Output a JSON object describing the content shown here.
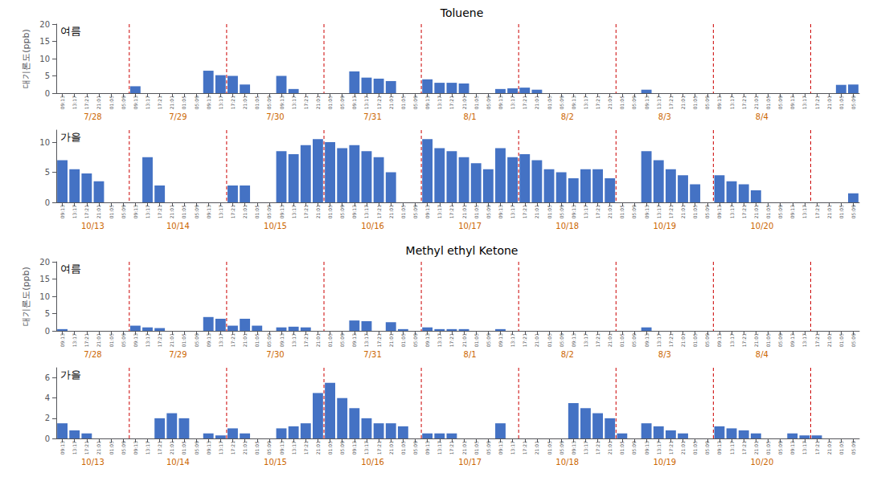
{
  "chart_data": [
    {
      "type": "bar",
      "title": "Toluene",
      "ylabel": "대기론도(ppb)",
      "annotations": [
        "여름"
      ],
      "categories": [
        "09:13",
        "13:17",
        "17:21",
        "21:01",
        "01:05",
        "05:09",
        "09:13",
        "13:17",
        "17:21",
        "21:01",
        "01:05",
        "05:09",
        "09:13",
        "13:17",
        "17:21",
        "21:01",
        "01:05",
        "05:09",
        "09:13",
        "13:17",
        "17:21",
        "21:01",
        "01:05",
        "05:09",
        "09:13",
        "13:17",
        "17:21",
        "21:01",
        "01:05",
        "05:09",
        "09:13",
        "13:17",
        "17:21",
        "21:01",
        "01:05",
        "05:09",
        "09:13",
        "13:17",
        "17:21",
        "21:01",
        "01:05",
        "05:09",
        "09:13",
        "13:17",
        "17:21",
        "21:01",
        "01:05",
        "05:09",
        "09:13",
        "13:17",
        "17:21",
        "21:01",
        "01:05",
        "05:09",
        "09:13",
        "13:17",
        "17:21",
        "21:01",
        "01:05",
        "05:09",
        "09:13",
        "13:17",
        "17:21",
        "21:01",
        "01:05",
        "05:09"
      ],
      "values": [
        0.0,
        0.0,
        0.0,
        0.0,
        0.0,
        0.0,
        2.0,
        0.0,
        0.0,
        0.0,
        0.0,
        0.0,
        6.5,
        5.2,
        5.0,
        2.5,
        0.0,
        0.0,
        5.0,
        1.2,
        0.0,
        0.0,
        0.0,
        0.0,
        6.3,
        4.5,
        4.2,
        3.5,
        0.0,
        0.0,
        4.0,
        3.0,
        3.0,
        2.8,
        0.0,
        0.0,
        1.2,
        1.4,
        1.6,
        1.0,
        0.0,
        0.0,
        0.0,
        0.0,
        0.0,
        0.0,
        0.0,
        0.0,
        1.0,
        0.0,
        0.0,
        0.0,
        0.0,
        0.0,
        0.0,
        0.0,
        0.0,
        0.0,
        0.0,
        0.0,
        0.0,
        0.0,
        0.0,
        0.0,
        2.4,
        2.5
      ],
      "color": "#4472C4",
      "ylim": [
        0,
        20
      ],
      "yticks": [
        0,
        5,
        10,
        15,
        20
      ],
      "grid": false,
      "day_labels": {
        "labels": [
          "7/28",
          "7/29",
          "7/30",
          "7/31",
          "8/1",
          "8/2",
          "8/3",
          "8/4"
        ],
        "color": "#CC6600"
      },
      "vlines": {
        "after": [
          5,
          13,
          21,
          29,
          37,
          45,
          53,
          61
        ],
        "color": "#CC0000",
        "line_style": "dashed"
      }
    },
    {
      "type": "bar",
      "annotations": [
        "가을"
      ],
      "categories": [
        "09:13",
        "13:17",
        "17:21",
        "21:01",
        "01:05",
        "05:09",
        "09:13",
        "13:17",
        "17:21",
        "21:01",
        "01:05",
        "05:09",
        "09:13",
        "13:17",
        "17:21",
        "21:01",
        "01:05",
        "05:09",
        "09:13",
        "13:17",
        "17:21",
        "21:01",
        "01:05",
        "05:09",
        "09:13",
        "13:17",
        "17:21",
        "21:01",
        "01:05",
        "05:09",
        "09:13",
        "13:17",
        "17:21",
        "21:01",
        "01:05",
        "05:09",
        "09:13",
        "13:17",
        "17:21",
        "21:01",
        "01:05",
        "05:09",
        "09:13",
        "13:17",
        "17:21",
        "21:01",
        "01:05",
        "05:09",
        "09:13",
        "13:17",
        "17:21",
        "21:01",
        "01:05",
        "05:09",
        "09:13",
        "13:17",
        "17:21",
        "21:01",
        "01:05",
        "05:09",
        "09:13",
        "13:17",
        "17:21",
        "21:01",
        "01:05",
        "05:09"
      ],
      "values": [
        7.0,
        5.5,
        4.8,
        3.5,
        0.0,
        0.0,
        0.0,
        7.5,
        2.8,
        0.0,
        0.0,
        0.0,
        0.0,
        0.0,
        2.8,
        2.8,
        0.0,
        0.0,
        8.5,
        8.0,
        9.5,
        10.5,
        10.0,
        9.0,
        9.5,
        8.5,
        7.5,
        5.0,
        0.0,
        0.0,
        10.5,
        9.0,
        8.5,
        7.5,
        6.5,
        5.5,
        9.0,
        7.5,
        8.0,
        7.0,
        5.5,
        5.0,
        4.0,
        5.5,
        5.5,
        4.0,
        0.0,
        0.0,
        8.5,
        7.0,
        5.5,
        4.5,
        3.0,
        0.0,
        4.5,
        3.5,
        3.0,
        2.0,
        0.0,
        0.0,
        0.0,
        0.0,
        0.0,
        0.0,
        0.0,
        1.5
      ],
      "color": "#4472C4",
      "ylim": [
        0,
        12
      ],
      "yticks": [
        0,
        5,
        10
      ],
      "grid": false,
      "day_labels": {
        "labels": [
          "10/13",
          "10/14",
          "10/15",
          "10/16",
          "10/17",
          "10/18",
          "10/19",
          "10/20"
        ],
        "color": "#CC6600"
      },
      "vlines": {
        "after": [
          5,
          13,
          21,
          29,
          37,
          45,
          53,
          61
        ],
        "color": "#CC0000",
        "line_style": "dashed"
      }
    },
    {
      "type": "bar",
      "title": "Methyl ethyl Ketone",
      "ylabel": "대기론도(ppb)",
      "annotations": [
        "여름"
      ],
      "categories": [
        "09:13",
        "13:17",
        "17:21",
        "21:01",
        "01:05",
        "05:09",
        "09:13",
        "13:17",
        "17:21",
        "21:01",
        "01:05",
        "05:09",
        "09:13",
        "13:17",
        "17:21",
        "21:01",
        "01:05",
        "05:09",
        "09:13",
        "13:17",
        "17:21",
        "21:01",
        "01:05",
        "05:09",
        "09:13",
        "13:17",
        "17:21",
        "21:01",
        "01:05",
        "05:09",
        "09:13",
        "13:17",
        "17:21",
        "21:01",
        "01:05",
        "05:09",
        "09:13",
        "13:17",
        "17:21",
        "21:01",
        "01:05",
        "05:09",
        "09:13",
        "13:17",
        "17:21",
        "21:01",
        "01:05",
        "05:09",
        "09:13",
        "13:17",
        "17:21",
        "21:01",
        "01:05",
        "05:09",
        "09:13",
        "13:17",
        "17:21",
        "21:01",
        "01:05",
        "05:09",
        "09:13",
        "13:17",
        "17:21",
        "21:01",
        "01:05",
        "05:09"
      ],
      "values": [
        0.5,
        0.0,
        0.0,
        0.0,
        0.0,
        0.0,
        1.5,
        1.0,
        0.8,
        0.0,
        0.0,
        0.0,
        4.0,
        3.5,
        1.5,
        3.5,
        1.5,
        0.0,
        1.0,
        1.2,
        1.0,
        0.0,
        0.0,
        0.0,
        3.0,
        2.8,
        0.0,
        2.5,
        0.5,
        0.0,
        1.0,
        0.5,
        0.5,
        0.5,
        0.0,
        0.0,
        0.5,
        0.0,
        0.0,
        0.0,
        0.0,
        0.0,
        0.0,
        0.0,
        0.0,
        0.0,
        0.0,
        0.0,
        1.0,
        0.0,
        0.0,
        0.0,
        0.0,
        0.0,
        0.0,
        0.0,
        0.0,
        0.0,
        0.0,
        0.0,
        0.0,
        0.0,
        0.0,
        0.0,
        0.0,
        0.0
      ],
      "color": "#4472C4",
      "ylim": [
        0,
        20
      ],
      "yticks": [
        0,
        5,
        10,
        15,
        20
      ],
      "grid": false,
      "day_labels": {
        "labels": [
          "7/28",
          "7/29",
          "7/30",
          "7/31",
          "8/1",
          "8/2",
          "8/3",
          "8/4"
        ],
        "color": "#CC6600"
      },
      "vlines": {
        "after": [
          5,
          13,
          21,
          29,
          37,
          45,
          53,
          61
        ],
        "color": "#CC0000",
        "line_style": "dashed"
      }
    },
    {
      "type": "bar",
      "annotations": [
        "가을"
      ],
      "categories": [
        "09:13",
        "13:17",
        "17:21",
        "21:01",
        "01:05",
        "05:09",
        "09:13",
        "13:17",
        "17:21",
        "21:01",
        "01:05",
        "05:09",
        "09:13",
        "13:17",
        "17:21",
        "21:01",
        "01:05",
        "05:09",
        "09:13",
        "13:17",
        "17:21",
        "21:01",
        "01:05",
        "05:09",
        "09:13",
        "13:17",
        "17:21",
        "21:01",
        "01:05",
        "05:09",
        "09:13",
        "13:17",
        "17:21",
        "21:01",
        "01:05",
        "05:09",
        "09:13",
        "13:17",
        "17:21",
        "21:01",
        "01:05",
        "05:09",
        "09:13",
        "13:17",
        "17:21",
        "21:01",
        "01:05",
        "05:09",
        "09:13",
        "13:17",
        "17:21",
        "21:01",
        "01:05",
        "05:09",
        "09:13",
        "13:17",
        "17:21",
        "21:01",
        "01:05",
        "05:09",
        "09:13",
        "13:17",
        "17:21",
        "21:01",
        "01:05",
        "05:09"
      ],
      "values": [
        1.5,
        0.8,
        0.5,
        0.0,
        0.0,
        0.0,
        0.0,
        0.0,
        2.0,
        2.5,
        2.0,
        0.0,
        0.5,
        0.3,
        1.0,
        0.5,
        0.0,
        0.0,
        1.0,
        1.2,
        1.5,
        4.5,
        5.5,
        4.0,
        3.0,
        2.0,
        1.5,
        1.5,
        1.2,
        0.0,
        0.5,
        0.5,
        0.5,
        0.0,
        0.0,
        0.0,
        1.5,
        0.0,
        0.0,
        0.0,
        0.0,
        0.0,
        3.5,
        3.0,
        2.5,
        2.0,
        0.5,
        0.0,
        1.5,
        1.2,
        0.8,
        0.5,
        0.0,
        0.0,
        1.2,
        1.0,
        0.8,
        0.5,
        0.0,
        0.0,
        0.5,
        0.3,
        0.3,
        0.0,
        0.0,
        0.0
      ],
      "color": "#4472C4",
      "ylim": [
        0,
        7
      ],
      "yticks": [
        0,
        2,
        4,
        6
      ],
      "grid": false,
      "day_labels": {
        "labels": [
          "10/13",
          "10/14",
          "10/15",
          "10/16",
          "10/17",
          "10/18",
          "10/19",
          "10/20"
        ],
        "color": "#CC6600"
      },
      "vlines": {
        "after": [
          5,
          13,
          21,
          29,
          37,
          45,
          53,
          61
        ],
        "color": "#CC0000",
        "line_style": "dashed"
      }
    }
  ]
}
